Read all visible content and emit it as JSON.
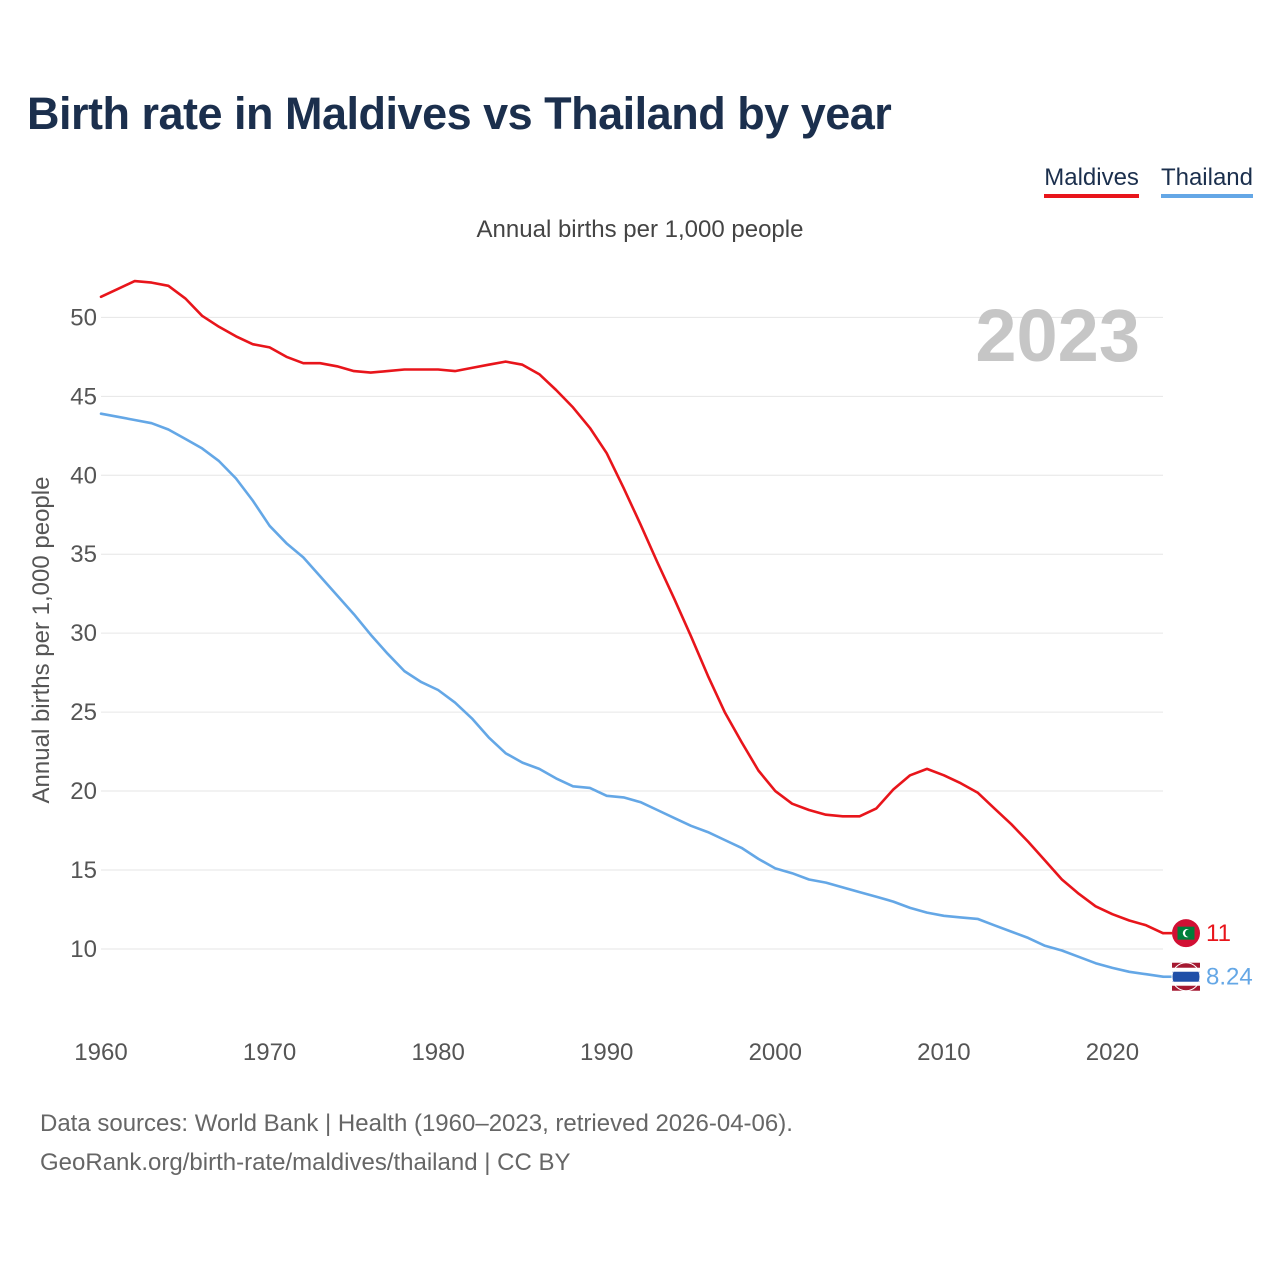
{
  "title": "Birth rate in Maldives vs Thailand by year",
  "subtitle": "Annual births per 1,000 people",
  "legend": [
    "Maldives",
    "Thailand"
  ],
  "footer": {
    "line1": "Data sources: World Bank | Health (1960–2023, retrieved 2026-04-06).",
    "line2": "GeoRank.org/birth-rate/maldives/thailand | CC BY"
  },
  "colors": {
    "maldives": "#e8151b",
    "thailand": "#64a7e6",
    "title": "#1b2f4d"
  },
  "chart_data": {
    "type": "line",
    "title": "Birth rate in Maldives vs Thailand by year",
    "xlabel": "",
    "ylabel": "Annual births per 1,000 people",
    "xlim": [
      1960,
      2023
    ],
    "ylim": [
      5.5,
      53
    ],
    "x_ticks": [
      1960,
      1970,
      1980,
      1990,
      2000,
      2010,
      2020
    ],
    "y_ticks": [
      10,
      15,
      20,
      25,
      30,
      35,
      40,
      45,
      50
    ],
    "grid": true,
    "current_year": "2023",
    "x": [
      1960,
      1961,
      1962,
      1963,
      1964,
      1965,
      1966,
      1967,
      1968,
      1969,
      1970,
      1971,
      1972,
      1973,
      1974,
      1975,
      1976,
      1977,
      1978,
      1979,
      1980,
      1981,
      1982,
      1983,
      1984,
      1985,
      1986,
      1987,
      1988,
      1989,
      1990,
      1991,
      1992,
      1993,
      1994,
      1995,
      1996,
      1997,
      1998,
      1999,
      2000,
      2001,
      2002,
      2003,
      2004,
      2005,
      2006,
      2007,
      2008,
      2009,
      2010,
      2011,
      2012,
      2013,
      2014,
      2015,
      2016,
      2017,
      2018,
      2019,
      2020,
      2021,
      2022,
      2023
    ],
    "series": [
      {
        "name": "Maldives",
        "color": "#e8151b",
        "end_label": "11",
        "values": [
          51.3,
          51.8,
          52.3,
          52.2,
          52.0,
          51.2,
          50.1,
          49.4,
          48.8,
          48.3,
          48.1,
          47.5,
          47.1,
          47.1,
          46.9,
          46.6,
          46.5,
          46.6,
          46.7,
          46.7,
          46.7,
          46.6,
          46.8,
          47.0,
          47.2,
          47.0,
          46.4,
          45.4,
          44.3,
          43.0,
          41.4,
          39.2,
          36.9,
          34.5,
          32.2,
          29.8,
          27.3,
          25.0,
          23.1,
          21.3,
          20.0,
          19.2,
          18.8,
          18.5,
          18.4,
          18.4,
          18.9,
          20.1,
          21.0,
          21.4,
          21.0,
          20.5,
          19.9,
          18.9,
          17.9,
          16.8,
          15.6,
          14.4,
          13.5,
          12.7,
          12.2,
          11.8,
          11.5,
          11.0
        ]
      },
      {
        "name": "Thailand",
        "color": "#64a7e6",
        "end_label": "8.24",
        "values": [
          43.9,
          43.7,
          43.5,
          43.3,
          42.9,
          42.3,
          41.7,
          40.9,
          39.8,
          38.4,
          36.8,
          35.7,
          34.8,
          33.6,
          32.4,
          31.2,
          29.9,
          28.7,
          27.6,
          26.9,
          26.4,
          25.6,
          24.6,
          23.4,
          22.4,
          21.8,
          21.4,
          20.8,
          20.3,
          20.2,
          19.7,
          19.6,
          19.3,
          18.8,
          18.3,
          17.8,
          17.4,
          16.9,
          16.4,
          15.7,
          15.1,
          14.8,
          14.4,
          14.2,
          13.9,
          13.6,
          13.3,
          13.0,
          12.6,
          12.3,
          12.1,
          12.0,
          11.9,
          11.5,
          11.1,
          10.7,
          10.2,
          9.9,
          9.5,
          9.1,
          8.8,
          8.55,
          8.4,
          8.24
        ]
      }
    ]
  }
}
